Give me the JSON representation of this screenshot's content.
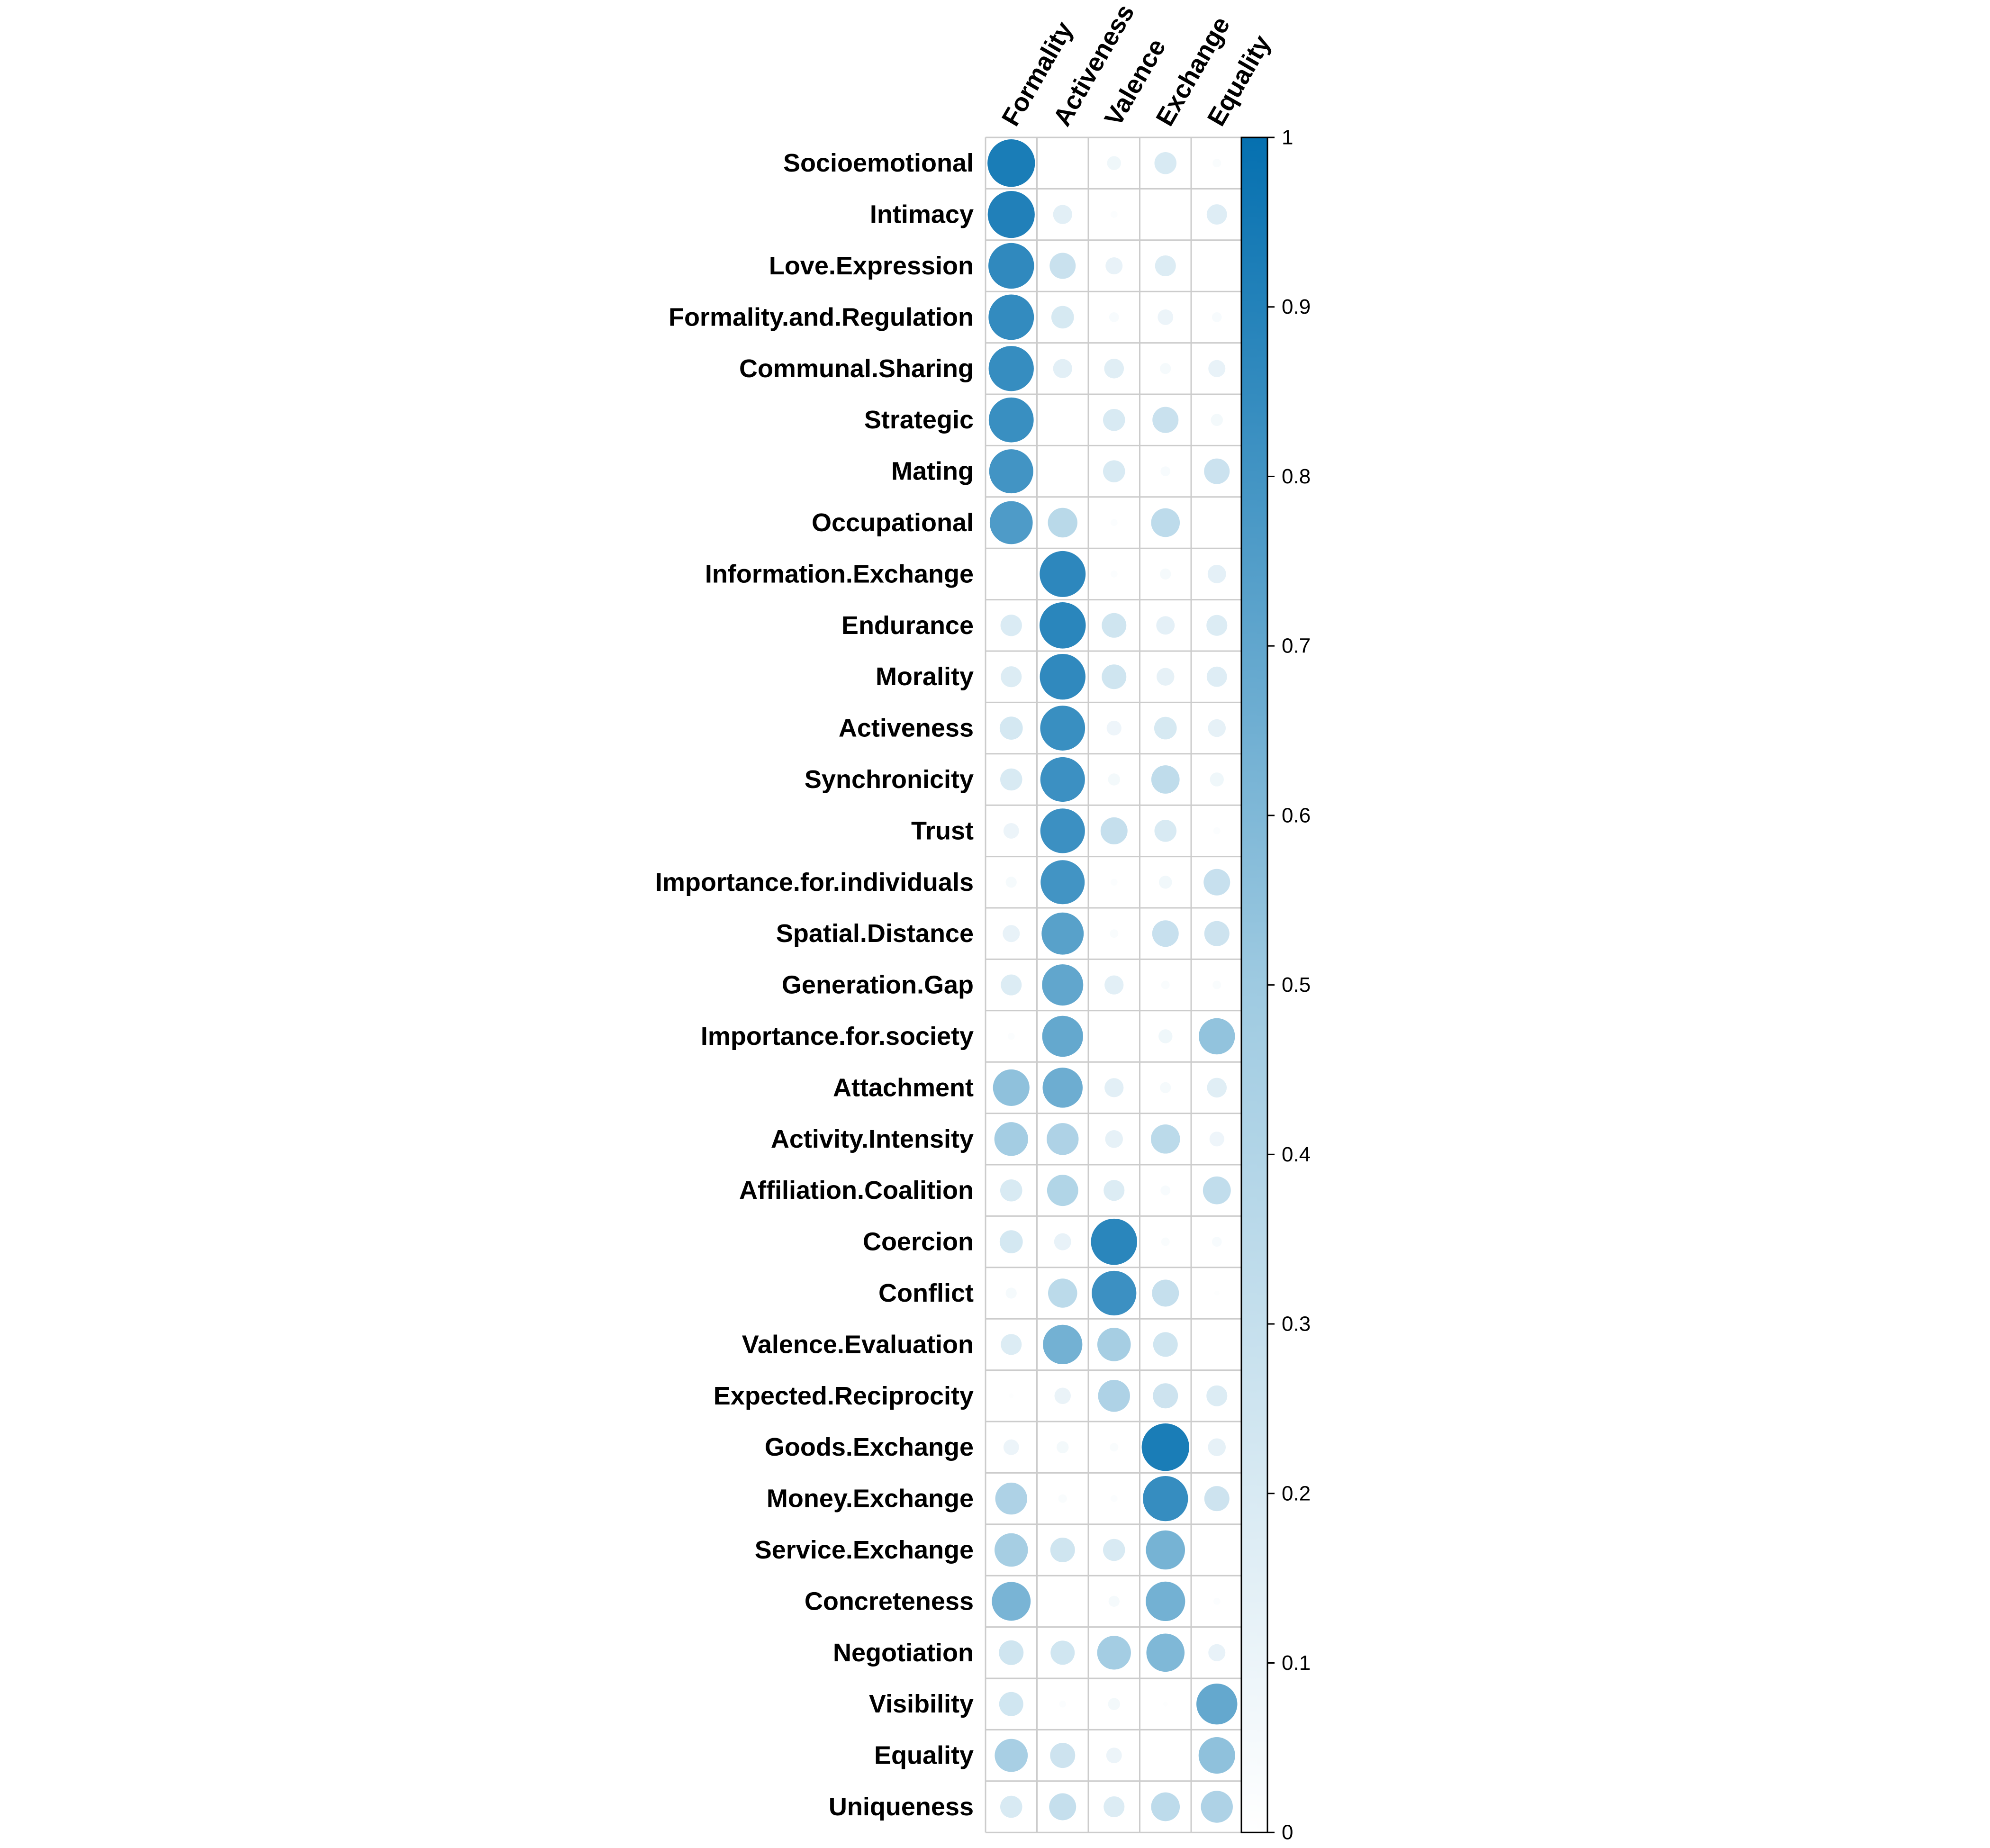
{
  "chart_data": {
    "type": "heatmap",
    "subtype": "correlation-circle-matrix",
    "title": "",
    "columns": [
      "Formality",
      "Activeness",
      "Valence",
      "Exchange",
      "Equality"
    ],
    "rows": [
      "Socioemotional",
      "Intimacy",
      "Love.Expression",
      "Formality.and.Regulation",
      "Communal.Sharing",
      "Strategic",
      "Mating",
      "Occupational",
      "Information.Exchange",
      "Endurance",
      "Morality",
      "Activeness",
      "Synchronicity",
      "Trust",
      "Importance.for.individuals",
      "Spatial.Distance",
      "Generation.Gap",
      "Importance.for.society",
      "Attachment",
      "Activity.Intensity",
      "Affiliation.Coalition",
      "Coercion",
      "Conflict",
      "Valence.Evaluation",
      "Expected.Reciprocity",
      "Goods.Exchange",
      "Money.Exchange",
      "Service.Exchange",
      "Concreteness",
      "Negotiation",
      "Visibility",
      "Equality",
      "Uniqueness"
    ],
    "values": [
      [
        0.93,
        0.0,
        0.08,
        0.2,
        0.03
      ],
      [
        0.91,
        0.15,
        0.02,
        0.0,
        0.17
      ],
      [
        0.86,
        0.28,
        0.12,
        0.18,
        0.0
      ],
      [
        0.85,
        0.21,
        0.04,
        0.1,
        0.04
      ],
      [
        0.84,
        0.15,
        0.16,
        0.05,
        0.12
      ],
      [
        0.83,
        0.0,
        0.2,
        0.28,
        0.06
      ],
      [
        0.8,
        0.0,
        0.2,
        0.04,
        0.27
      ],
      [
        0.76,
        0.36,
        0.02,
        0.34,
        0.0
      ],
      [
        0.0,
        0.87,
        0.02,
        0.05,
        0.14
      ],
      [
        0.19,
        0.88,
        0.25,
        0.14,
        0.18
      ],
      [
        0.18,
        0.86,
        0.25,
        0.13,
        0.17
      ],
      [
        0.22,
        0.83,
        0.09,
        0.21,
        0.13
      ],
      [
        0.2,
        0.82,
        0.06,
        0.33,
        0.08
      ],
      [
        0.1,
        0.82,
        0.3,
        0.2,
        0.02
      ],
      [
        0.05,
        0.8,
        0.02,
        0.07,
        0.29
      ],
      [
        0.12,
        0.73,
        0.03,
        0.29,
        0.26
      ],
      [
        0.18,
        0.7,
        0.15,
        0.03,
        0.03
      ],
      [
        0.02,
        0.69,
        0.0,
        0.08,
        0.54
      ],
      [
        0.55,
        0.66,
        0.15,
        0.05,
        0.16
      ],
      [
        0.47,
        0.42,
        0.13,
        0.35,
        0.09
      ],
      [
        0.2,
        0.4,
        0.18,
        0.04,
        0.32
      ],
      [
        0.22,
        0.12,
        0.88,
        0.03,
        0.04
      ],
      [
        0.05,
        0.35,
        0.82,
        0.3,
        0.01
      ],
      [
        0.18,
        0.64,
        0.46,
        0.25,
        0.0
      ],
      [
        0.01,
        0.11,
        0.42,
        0.26,
        0.18
      ],
      [
        0.1,
        0.06,
        0.03,
        0.93,
        0.13
      ],
      [
        0.42,
        0.03,
        0.02,
        0.84,
        0.26
      ],
      [
        0.46,
        0.25,
        0.2,
        0.63,
        0.0
      ],
      [
        0.62,
        0.0,
        0.05,
        0.64,
        0.02
      ],
      [
        0.25,
        0.24,
        0.47,
        0.6,
        0.12
      ],
      [
        0.24,
        0.02,
        0.06,
        0.01,
        0.69
      ],
      [
        0.45,
        0.26,
        0.1,
        0.0,
        0.55
      ],
      [
        0.2,
        0.3,
        0.18,
        0.34,
        0.42
      ]
    ],
    "colorbar": {
      "min": 0,
      "max": 1,
      "ticks": [
        0,
        0.1,
        0.2,
        0.3,
        0.4,
        0.5,
        0.6,
        0.7,
        0.8,
        0.9,
        1
      ],
      "tick_labels": [
        "0",
        "0.1",
        "0.2",
        "0.3",
        "0.4",
        "0.5",
        "0.6",
        "0.7",
        "0.8",
        "0.9",
        "1"
      ],
      "color_low": "#ffffff",
      "color_mid": "#9ecae1",
      "color_high": "#0570b0"
    },
    "grid": true,
    "grid_color": "#cccccc",
    "legend": "right"
  }
}
